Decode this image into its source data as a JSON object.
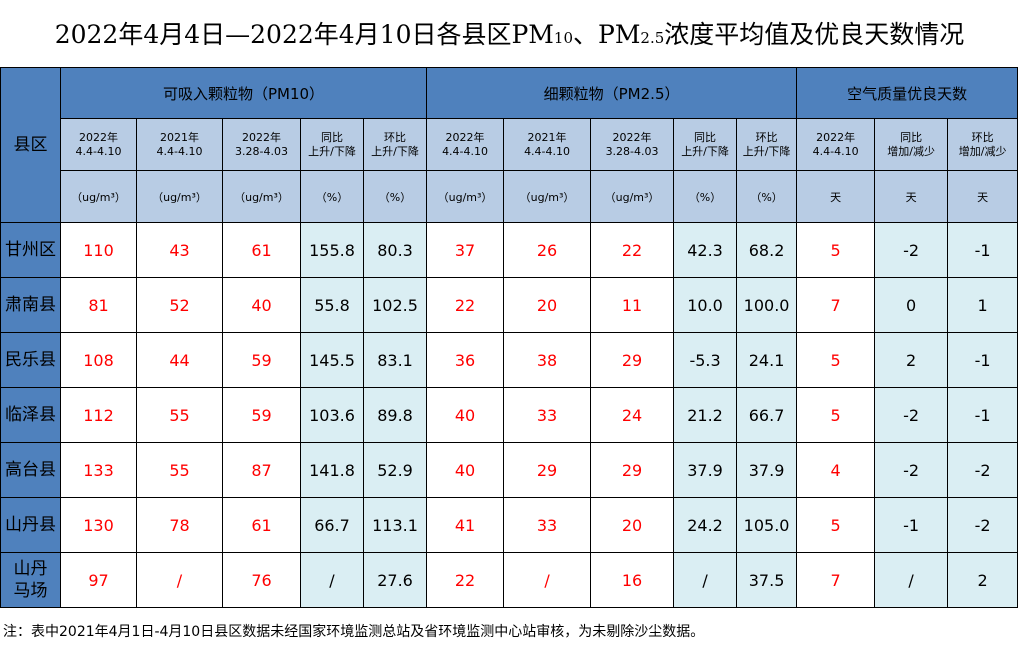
{
  "title": {
    "main": "2022年4月4日—2022年4月10日各县区PM",
    "sub1": "10",
    "mid": "、PM",
    "sub2": "2.5",
    "tail": "浓度平均值及优良天数情况"
  },
  "header": {
    "county": "县区",
    "groups": [
      "可吸入颗粒物（PM10）",
      "细颗粒物（PM2.5）",
      "空气质量优良天数"
    ],
    "subcols": [
      [
        "2022年",
        "4.4-4.10"
      ],
      [
        "2021年",
        "4.4-4.10"
      ],
      [
        "2022年",
        "3.28-4.03"
      ],
      [
        "同比",
        "上升/下降"
      ],
      [
        "环比",
        "上升/下降"
      ],
      [
        "2022年",
        "4.4-4.10"
      ],
      [
        "2021年",
        "4.4-4.10"
      ],
      [
        "2022年",
        "3.28-4.03"
      ],
      [
        "同比",
        "上升/下降"
      ],
      [
        "环比",
        "上升/下降"
      ],
      [
        "2022年",
        "4.4-4.10"
      ],
      [
        "同比",
        "增加/减少"
      ],
      [
        "环比",
        "增加/减少"
      ]
    ],
    "units": [
      "（ug/m³）",
      "（ug/m³）",
      "（ug/m³）",
      "（%）",
      "（%）",
      "（ug/m³）",
      "（ug/m³）",
      "（ug/m³）",
      "（%）",
      "（%）",
      "天",
      "天",
      "天"
    ]
  },
  "rows": [
    {
      "county": "甘州区",
      "values": [
        "110",
        "43",
        "61",
        "155.8",
        "80.3",
        "37",
        "26",
        "22",
        "42.3",
        "68.2",
        "5",
        "-2",
        "-1"
      ]
    },
    {
      "county": "肃南县",
      "values": [
        "81",
        "52",
        "40",
        "55.8",
        "102.5",
        "22",
        "20",
        "11",
        "10.0",
        "100.0",
        "7",
        "0",
        "1"
      ]
    },
    {
      "county": "民乐县",
      "values": [
        "108",
        "44",
        "59",
        "145.5",
        "83.1",
        "36",
        "38",
        "29",
        "-5.3",
        "24.1",
        "5",
        "2",
        "-1"
      ]
    },
    {
      "county": "临泽县",
      "values": [
        "112",
        "55",
        "59",
        "103.6",
        "89.8",
        "40",
        "33",
        "24",
        "21.2",
        "66.7",
        "5",
        "-2",
        "-1"
      ]
    },
    {
      "county": "高台县",
      "values": [
        "133",
        "55",
        "87",
        "141.8",
        "52.9",
        "40",
        "29",
        "29",
        "37.9",
        "37.9",
        "4",
        "-2",
        "-2"
      ]
    },
    {
      "county": "山丹县",
      "values": [
        "130",
        "78",
        "61",
        "66.7",
        "113.1",
        "41",
        "33",
        "20",
        "24.2",
        "105.0",
        "5",
        "-1",
        "-2"
      ]
    },
    {
      "county": "山丹马场",
      "county_lines": [
        "山丹",
        "马场"
      ],
      "values": [
        "97",
        "/",
        "76",
        "/",
        "27.6",
        "22",
        "/",
        "16",
        "/",
        "37.5",
        "7",
        "/",
        "2"
      ]
    }
  ],
  "note": "注：表中2021年4月1日-4月10日县区数据未经国家环境监测总站及省环境监测中心站审核，为未剔除沙尘数据。",
  "colors": {
    "header": "#4f81bd",
    "subheader": "#b8cce4",
    "pct": "#daeef3",
    "value": "#ff0000"
  }
}
